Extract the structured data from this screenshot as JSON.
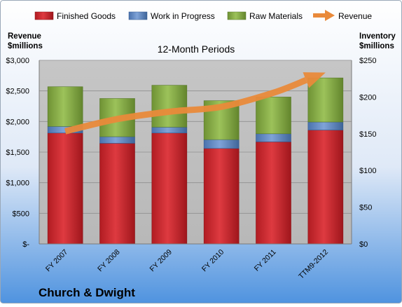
{
  "company": "Church & Dwight",
  "colors": {
    "finished": "#c9252c",
    "wip": "#5b86c5",
    "raw": "#86aa47",
    "revenue": "#e98a3a",
    "plot_bg": "#c2c2c2"
  },
  "chart_data": {
    "type": "bar",
    "stacked": true,
    "title": "12-Month Periods",
    "left_axis_label": [
      "Revenue",
      "$millions"
    ],
    "right_axis_label": [
      "Inventory",
      "$millions"
    ],
    "categories": [
      "FY 2007",
      "FY 2008",
      "FY 2009",
      "FY 2010",
      "FY 2011",
      "TTM9-2012"
    ],
    "series": [
      {
        "name": "Finished Goods",
        "values": [
          151,
          137,
          151,
          130,
          139,
          155
        ]
      },
      {
        "name": "Work in Progress",
        "values": [
          9,
          9,
          8,
          12,
          11,
          11
        ]
      },
      {
        "name": "Raw Materials",
        "values": [
          54,
          52,
          57,
          53,
          50,
          60
        ]
      }
    ],
    "line_series": {
      "name": "Revenue",
      "values": [
        1840,
        2040,
        2160,
        2240,
        2470,
        2800
      ],
      "axis": "left"
    },
    "left_ylim": [
      0,
      3000
    ],
    "left_ticks": [
      0,
      500,
      1000,
      1500,
      2000,
      2500,
      3000
    ],
    "left_tick_labels": [
      "$-",
      "$500",
      "$1,000",
      "$1,500",
      "$2,000",
      "$2,500",
      "$3,000"
    ],
    "right_ylim": [
      0,
      250
    ],
    "right_ticks": [
      0,
      50,
      100,
      150,
      200,
      250
    ],
    "right_tick_labels": [
      "$0",
      "$50",
      "$100",
      "$150",
      "$200",
      "$250"
    ],
    "grid": true,
    "legend": "top"
  }
}
